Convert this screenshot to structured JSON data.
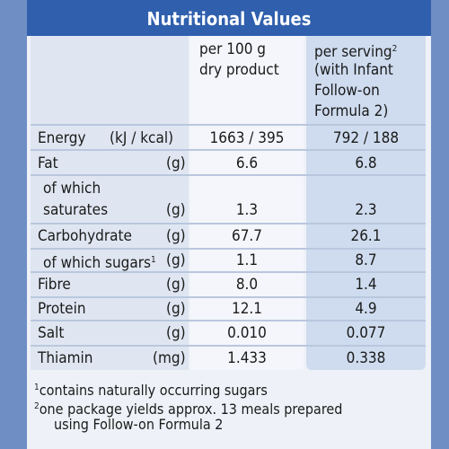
{
  "title": "Nutritional Values",
  "columns": {
    "per100_line1": "per 100 g",
    "per100_line2": "dry product",
    "serving_line1": "per serving",
    "serving_sup": "2",
    "serving_line2": "(with Infant",
    "serving_line3": "Follow-on",
    "serving_line4": "Formula 2)"
  },
  "rows": [
    {
      "label": "Energy",
      "unit": "(kJ / kcal)",
      "per100": "1663 / 395",
      "serving": "792 / 188"
    },
    {
      "label": "Fat",
      "unit": "(g)",
      "per100": "6.6",
      "serving": "6.8"
    },
    {
      "label_line1": "of which",
      "label_line2": "saturates",
      "unit": "(g)",
      "per100": "1.3",
      "serving": "2.3"
    },
    {
      "label": "Carbohydrate",
      "unit": "(g)",
      "per100": "67.7",
      "serving": "26.1"
    },
    {
      "label": "of which sugars",
      "sup": "1",
      "unit": "(g)",
      "per100": "1.1",
      "serving": "8.7"
    },
    {
      "label": "Fibre",
      "unit": "(g)",
      "per100": "8.0",
      "serving": "1.4"
    },
    {
      "label": "Protein",
      "unit": "(g)",
      "per100": "12.1",
      "serving": "4.9"
    },
    {
      "label": "Salt",
      "unit": "(g)",
      "per100": "0.010",
      "serving": "0.077"
    },
    {
      "label": "Thiamin",
      "unit": "(mg)",
      "per100": "1.433",
      "serving": "0.338"
    }
  ],
  "footnotes": {
    "fn1_mark": "1",
    "fn1_text": "contains naturally occurring sugars",
    "fn2_mark": "2",
    "fn2_line1": "one package yields approx. 13 meals prepared",
    "fn2_line2": "using Follow-on Formula 2"
  },
  "colors": {
    "header": "#2f5fad",
    "label_column": "#dfe6f1",
    "serving_column": "#cfdcef"
  }
}
